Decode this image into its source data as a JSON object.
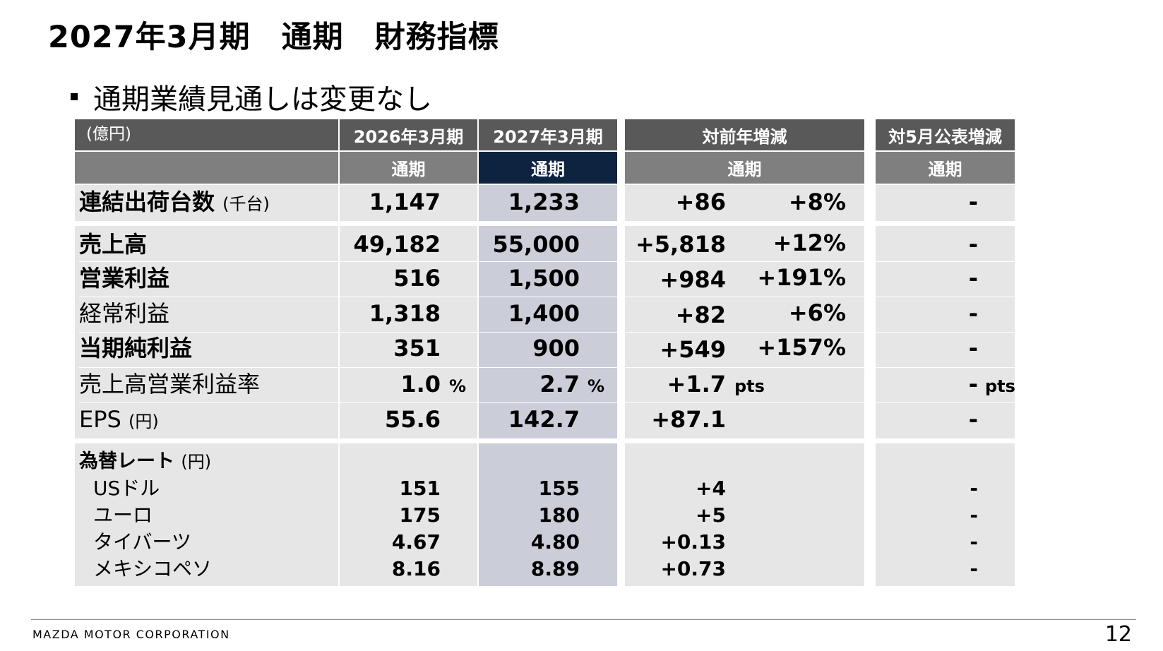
{
  "title": "2027年3月期　通期　財務指標",
  "bullet": "通期業績見通しは変更なし",
  "table": {
    "unit_label": "(億円)",
    "col_fy2026": "2026年3月期",
    "col_fy2027": "2027年3月期",
    "col_yoy": "対前年増減",
    "col_may": "対5月公表増減",
    "sub_fy2026": "通期",
    "sub_fy2027": "通期",
    "sub_yoy": "通期",
    "sub_may": "通期",
    "shipments": {
      "label": "連結出荷台数",
      "unit": "(千台)",
      "fy2026": "1,147",
      "fy2027": "1,233",
      "yoy": "+86",
      "yoy_pct": "+8%",
      "may": "-"
    },
    "rows": [
      {
        "label": "売上高",
        "unit": "",
        "fy2026": "49,182",
        "fy2027": "55,000",
        "yoy": "+5,818",
        "yoy_pct": "+12%",
        "may": "-"
      },
      {
        "label": "営業利益",
        "unit": "",
        "fy2026": "516",
        "fy2027": "1,500",
        "yoy": "+984",
        "yoy_pct": "+191%",
        "may": "-"
      },
      {
        "label": "経常利益",
        "unit": "",
        "fy2026": "1,318",
        "fy2027": "1,400",
        "yoy": "+82",
        "yoy_pct": "+6%",
        "may": "-"
      },
      {
        "label": "当期純利益",
        "unit": "",
        "fy2026": "351",
        "fy2027": "900",
        "yoy": "+549",
        "yoy_pct": "+157%",
        "may": "-"
      },
      {
        "label": "売上高営業利益率",
        "unit": "",
        "fy2026": "1.0",
        "fy2027": "2.7",
        "yoy": "+1.7",
        "yoy_pct": "",
        "may": "-"
      },
      {
        "label": "EPS",
        "unit": "(円)",
        "fy2026": "55.6",
        "fy2027": "142.7",
        "yoy": "+87.1",
        "yoy_pct": "",
        "may": "-"
      }
    ],
    "pct_sign": "%",
    "pts": "pts",
    "fx": {
      "label": "為替レート",
      "unit": "(円)",
      "rows": [
        {
          "label": "USドル",
          "fy2026": "151",
          "fy2027": "155",
          "yoy": "+4",
          "may": "-"
        },
        {
          "label": "ユーロ",
          "fy2026": "175",
          "fy2027": "180",
          "yoy": "+5",
          "may": "-"
        },
        {
          "label": "タイバーツ",
          "fy2026": "4.67",
          "fy2027": "4.80",
          "yoy": "+0.13",
          "may": "-"
        },
        {
          "label": "メキシコペソ",
          "fy2026": "8.16",
          "fy2027": "8.89",
          "yoy": "+0.73",
          "may": "-"
        }
      ]
    }
  },
  "footer": {
    "company": "MAZDA MOTOR CORPORATION",
    "page": "12"
  }
}
